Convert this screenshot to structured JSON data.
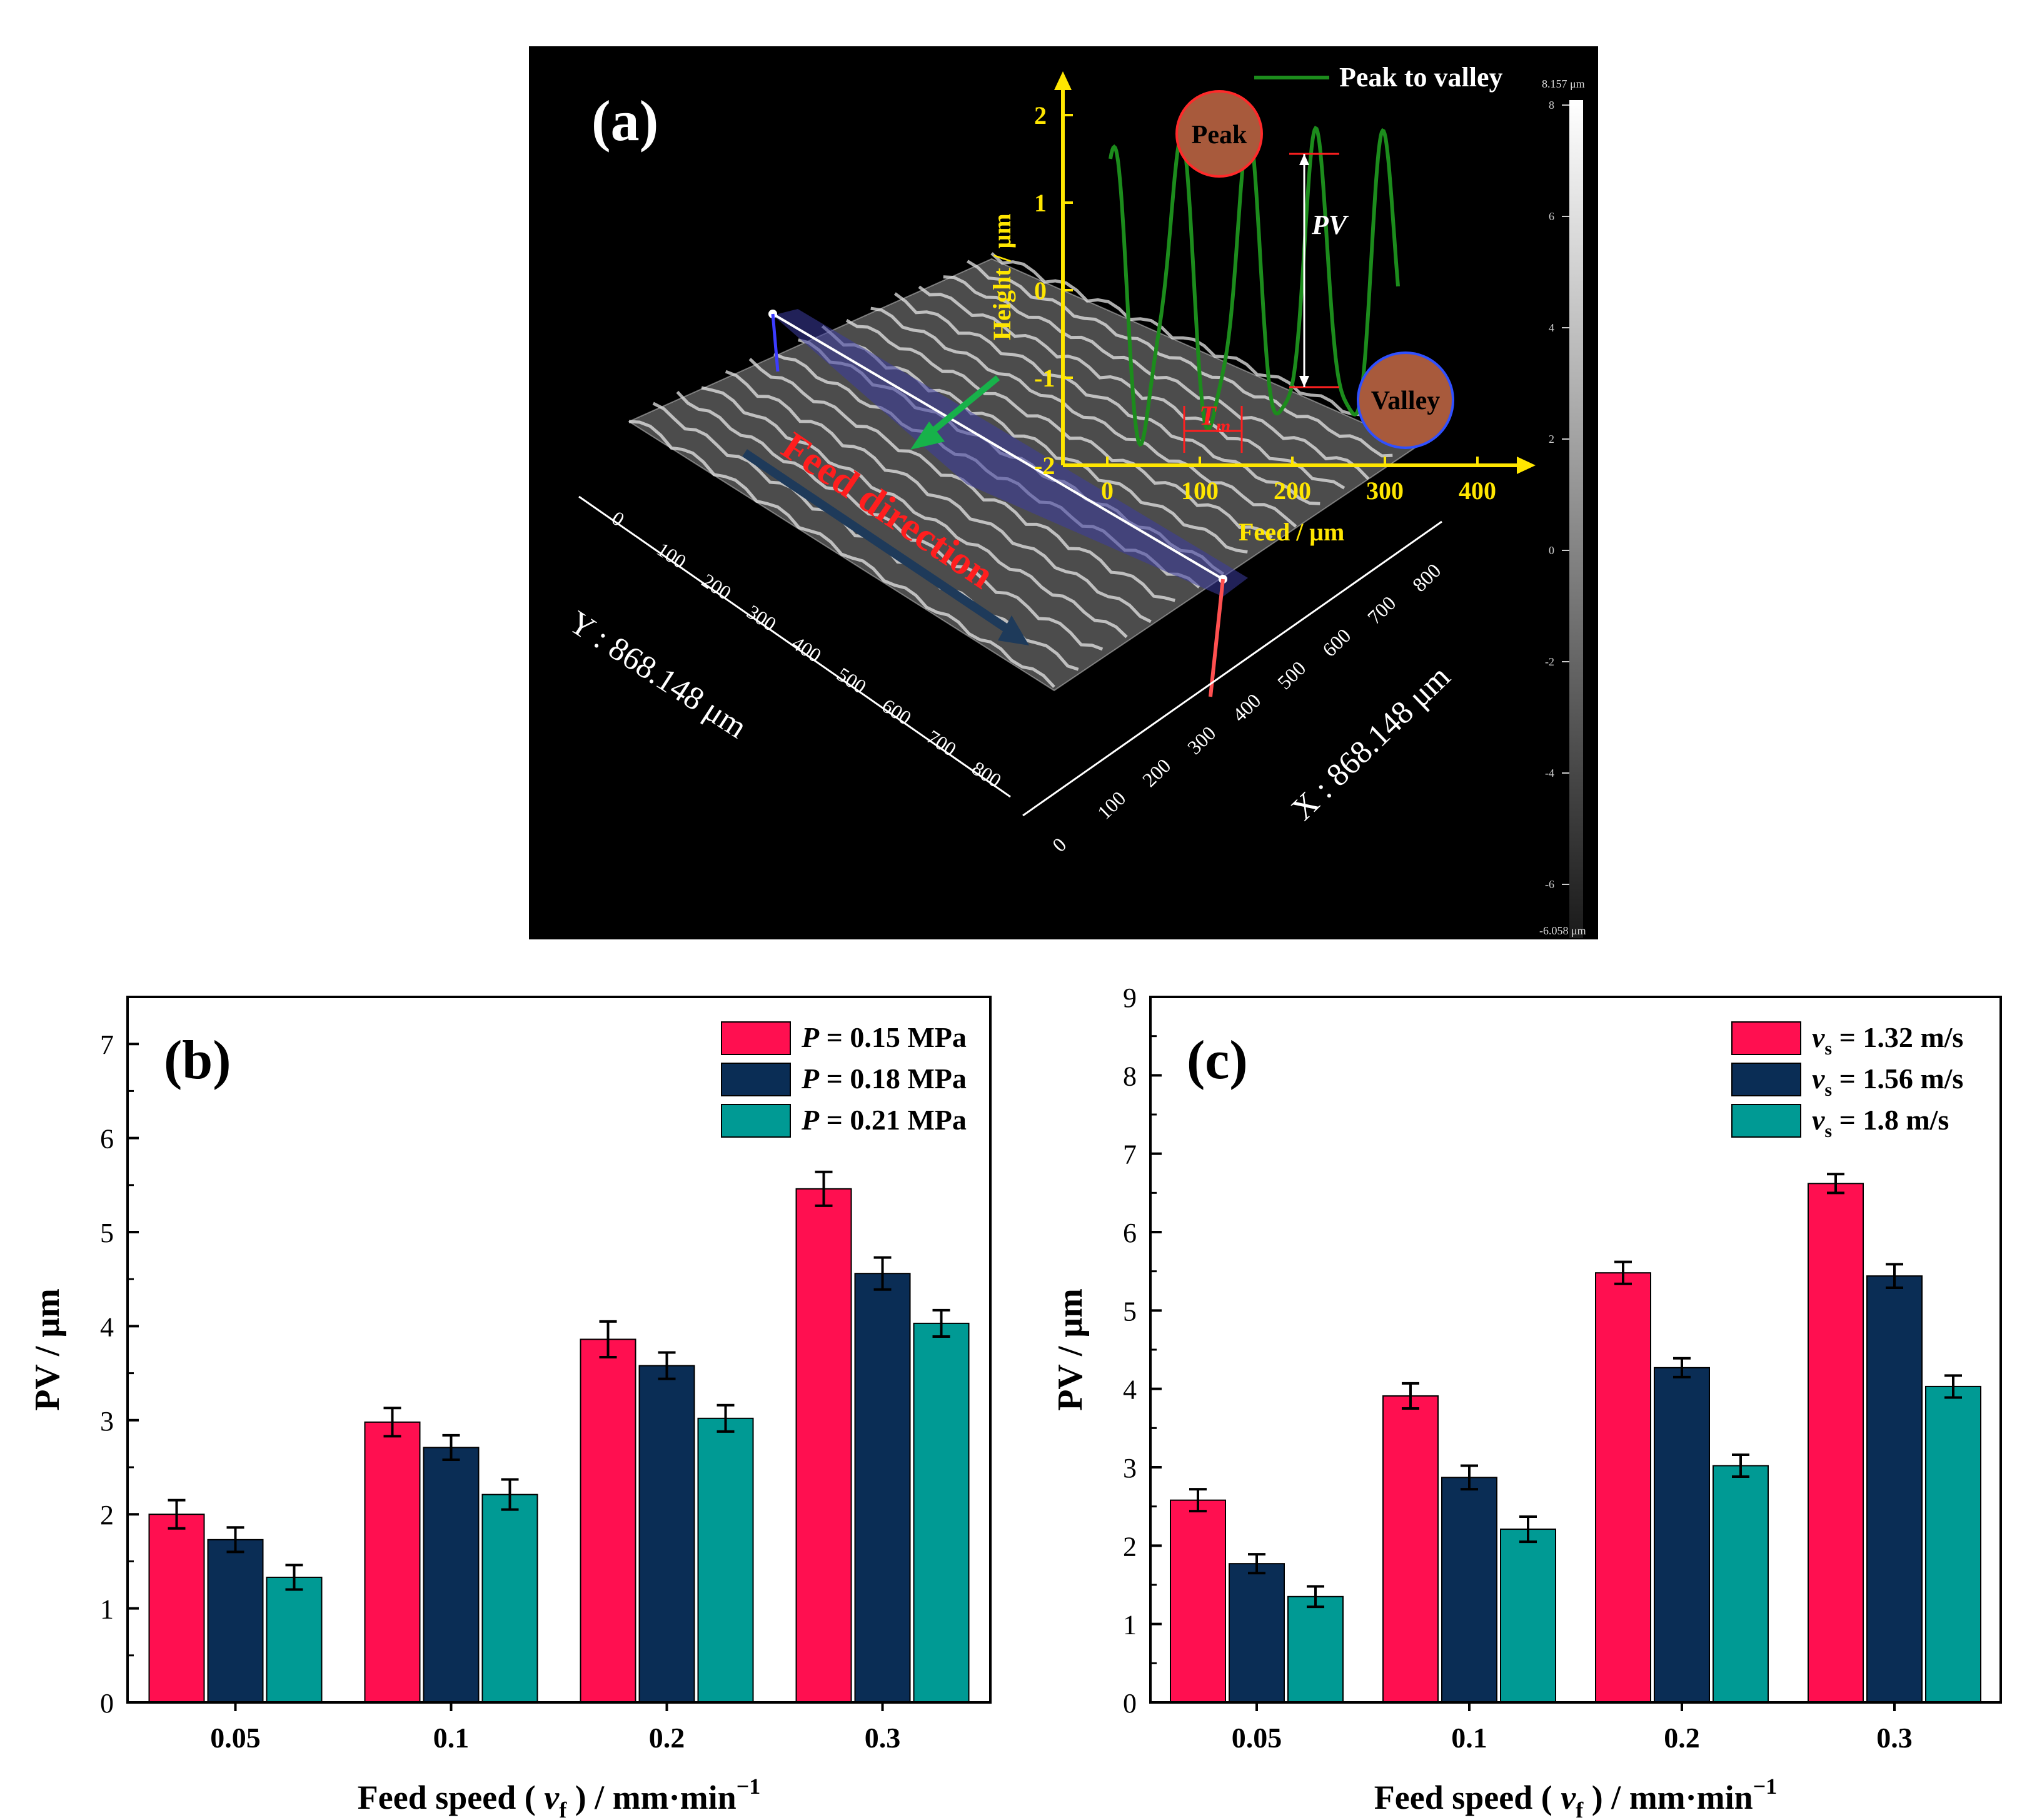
{
  "panel_a": {
    "label": "(a)",
    "legend": "Peak to valley",
    "y_axis_label": "Height / μm",
    "x_axis_label": "Feed / μm",
    "y_ticks": [
      "2",
      "1",
      "0",
      "-1",
      "-2"
    ],
    "x_ticks": [
      "0",
      "100",
      "200",
      "300",
      "400"
    ],
    "peak_label": "Peak",
    "valley_label": "Valley",
    "pv_label": "PV",
    "tm_label": "T",
    "tm_sub": "m",
    "feed_direction": "Feed direction",
    "y_dim_label": "Y : 868.148 μm",
    "x_dim_label": "X : 868.148 μm",
    "y_dim_ticks": [
      "0",
      "100",
      "200",
      "300",
      "400",
      "500",
      "600",
      "700",
      "800"
    ],
    "x_dim_ticks": [
      "0",
      "100",
      "200",
      "300",
      "400",
      "500",
      "600",
      "700",
      "800"
    ],
    "scale_max": "8.157 μm",
    "scale_min": "-6.058 μm",
    "scale_ticks": [
      "8",
      "6",
      "4",
      "2",
      "0",
      "-2",
      "-4",
      "-6"
    ],
    "colors": {
      "profile": "#1c8c1c",
      "axis": "#ffe600",
      "marker": "#a85a3c",
      "plane": "#3c3ca0",
      "feed_text": "#ff1e1e",
      "feed_arrow": "#1e3a5a"
    }
  },
  "chart_data": [
    {
      "type": "bar",
      "label": "(b)",
      "categories": [
        "0.05",
        "0.1",
        "0.2",
        "0.3"
      ],
      "series": [
        {
          "name_sym": "P",
          "name_rest": " = 0.15 MPa",
          "color": "#ff0f50",
          "values": [
            2.0,
            2.98,
            3.86,
            5.46
          ],
          "errors": [
            0.15,
            0.15,
            0.19,
            0.18
          ]
        },
        {
          "name_sym": "P",
          "name_rest": " = 0.18 MPa",
          "color": "#0a2d55",
          "values": [
            1.73,
            2.71,
            3.58,
            4.56
          ],
          "errors": [
            0.13,
            0.13,
            0.14,
            0.17
          ]
        },
        {
          "name_sym": "P",
          "name_rest": " = 0.21 MPa",
          "color": "#009a94",
          "values": [
            1.33,
            2.21,
            3.02,
            4.03
          ],
          "errors": [
            0.13,
            0.16,
            0.14,
            0.14
          ]
        }
      ],
      "xlabel": "Feed speed ( v f ) / mm·min−1",
      "ylabel": "PV / μm",
      "ylim": [
        0,
        7.5
      ],
      "yticks": [
        0,
        1,
        2,
        3,
        4,
        5,
        6,
        7
      ]
    },
    {
      "type": "bar",
      "label": "(c)",
      "categories": [
        "0.05",
        "0.1",
        "0.2",
        "0.3"
      ],
      "series": [
        {
          "name_sym": "v",
          "name_sub": "s",
          "name_rest": " = 1.32 m/s",
          "color": "#ff0f50",
          "values": [
            2.58,
            3.91,
            5.48,
            6.62
          ],
          "errors": [
            0.14,
            0.16,
            0.14,
            0.12
          ]
        },
        {
          "name_sym": "v",
          "name_sub": "s",
          "name_rest": " = 1.56 m/s",
          "color": "#0a2d55",
          "values": [
            1.77,
            2.87,
            4.27,
            5.44
          ],
          "errors": [
            0.12,
            0.15,
            0.12,
            0.15
          ]
        },
        {
          "name_sym": "v",
          "name_sub": "s",
          "name_rest": " = 1.8 m/s",
          "color": "#009a94",
          "values": [
            1.35,
            2.21,
            3.02,
            4.03
          ],
          "errors": [
            0.13,
            0.16,
            0.14,
            0.14
          ]
        }
      ],
      "xlabel": "Feed speed ( v f ) / mm·min−1",
      "ylabel": "PV / μm",
      "ylim": [
        0,
        9
      ],
      "yticks": [
        0,
        1,
        2,
        3,
        4,
        5,
        6,
        7,
        8,
        9
      ]
    }
  ]
}
